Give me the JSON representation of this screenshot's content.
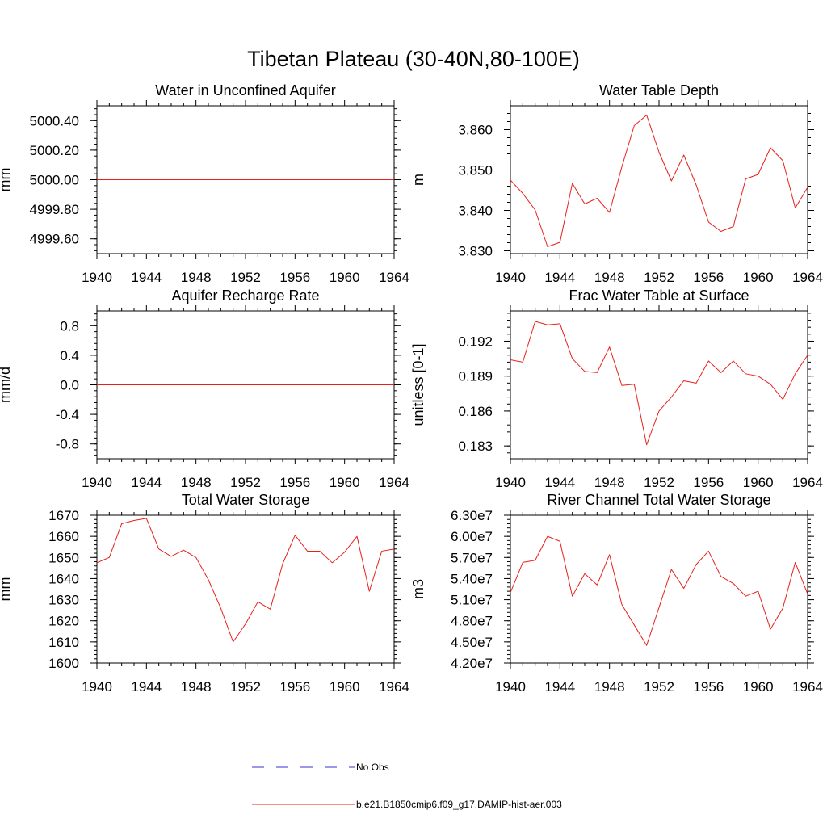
{
  "figure": {
    "title": "Tibetan Plateau (30-40N,80-100E)"
  },
  "legend": {
    "items": [
      {
        "label": "No Obs",
        "color": "#3333cc",
        "dashed": true
      },
      {
        "label": "b.e21.B1850cmip6.f09_g17.DAMIP-hist-aer.003",
        "color": "#e8201a",
        "dashed": false
      }
    ]
  },
  "chart_data": [
    {
      "type": "line",
      "title": "Water in Unconfined Aquifer",
      "ylabel": "mm",
      "xlabel": "",
      "xlim": [
        1940,
        1964
      ],
      "ylim": [
        4999.5,
        5000.5
      ],
      "xticks": [
        1940,
        1944,
        1948,
        1952,
        1956,
        1960,
        1964
      ],
      "xtick_labels": [
        "1940",
        "1944",
        "1948",
        "1952",
        "1956",
        "1960",
        "1964"
      ],
      "yticks": [
        4999.6,
        4999.8,
        5000.0,
        5000.2,
        5000.4
      ],
      "ytick_labels": [
        "4999.60",
        "4999.80",
        "5000.00",
        "5000.20",
        "5000.40"
      ],
      "yminor": 0.04,
      "series": [
        {
          "name": "b.e21.B1850cmip6.f09_g17.DAMIP-hist-aer.003",
          "color": "#e8201a",
          "x": [
            1940,
            1941,
            1942,
            1943,
            1944,
            1945,
            1946,
            1947,
            1948,
            1949,
            1950,
            1951,
            1952,
            1953,
            1954,
            1955,
            1956,
            1957,
            1958,
            1959,
            1960,
            1961,
            1962,
            1963,
            1964
          ],
          "y": [
            5000.0,
            5000.0,
            5000.0,
            5000.0,
            5000.0,
            5000.0,
            5000.0,
            5000.0,
            5000.0,
            5000.0,
            5000.0,
            5000.0,
            5000.0,
            5000.0,
            5000.0,
            5000.0,
            5000.0,
            5000.0,
            5000.0,
            5000.0,
            5000.0,
            5000.0,
            5000.0,
            5000.0,
            5000.0
          ]
        }
      ]
    },
    {
      "type": "line",
      "title": "Water Table Depth",
      "ylabel": "m",
      "xlabel": "",
      "xlim": [
        1940,
        1964
      ],
      "ylim": [
        3.8293,
        3.8659
      ],
      "xticks": [
        1940,
        1944,
        1948,
        1952,
        1956,
        1960,
        1964
      ],
      "xtick_labels": [
        "1940",
        "1944",
        "1948",
        "1952",
        "1956",
        "1960",
        "1964"
      ],
      "yticks": [
        3.83,
        3.84,
        3.85,
        3.86
      ],
      "ytick_labels": [
        "3.830",
        "3.840",
        "3.850",
        "3.860"
      ],
      "yminor": 0.002,
      "series": [
        {
          "name": "b.e21.B1850cmip6.f09_g17.DAMIP-hist-aer.003",
          "color": "#e8201a",
          "x": [
            1940,
            1941,
            1942,
            1943,
            1944,
            1945,
            1946,
            1947,
            1948,
            1949,
            1950,
            1951,
            1952,
            1953,
            1954,
            1955,
            1956,
            1957,
            1958,
            1959,
            1960,
            1961,
            1962,
            1963,
            1964
          ],
          "y": [
            3.8475,
            3.8442,
            3.8401,
            3.831,
            3.8321,
            3.8467,
            3.8416,
            3.843,
            3.8395,
            3.8508,
            3.861,
            3.8636,
            3.8544,
            3.8473,
            3.8537,
            3.8463,
            3.8371,
            3.8348,
            3.836,
            3.8478,
            3.8489,
            3.8555,
            3.8523,
            3.8406,
            3.8457
          ]
        }
      ]
    },
    {
      "type": "line",
      "title": "Aquifer Recharge Rate",
      "ylabel": "mm/d",
      "xlabel": "",
      "xlim": [
        1940,
        1964
      ],
      "ylim": [
        -1.0,
        1.0
      ],
      "xticks": [
        1940,
        1944,
        1948,
        1952,
        1956,
        1960,
        1964
      ],
      "xtick_labels": [
        "1940",
        "1944",
        "1948",
        "1952",
        "1956",
        "1960",
        "1964"
      ],
      "yticks": [
        -0.8,
        -0.4,
        0.0,
        0.4,
        0.8
      ],
      "ytick_labels": [
        "-0.8",
        "-0.4",
        "0.0",
        "0.4",
        "0.8"
      ],
      "yminor": 0.08,
      "series": [
        {
          "name": "b.e21.B1850cmip6.f09_g17.DAMIP-hist-aer.003",
          "color": "#e8201a",
          "x": [
            1940,
            1941,
            1942,
            1943,
            1944,
            1945,
            1946,
            1947,
            1948,
            1949,
            1950,
            1951,
            1952,
            1953,
            1954,
            1955,
            1956,
            1957,
            1958,
            1959,
            1960,
            1961,
            1962,
            1963,
            1964
          ],
          "y": [
            0,
            0,
            0,
            0,
            0,
            0,
            0,
            0,
            0,
            0,
            0,
            0,
            0,
            0,
            0,
            0,
            0,
            0,
            0,
            0,
            0,
            0,
            0,
            0,
            0
          ]
        }
      ]
    },
    {
      "type": "line",
      "title": "Frac Water Table at Surface",
      "ylabel": "unitless [0-1]",
      "xlabel": "",
      "xlim": [
        1940,
        1964
      ],
      "ylim": [
        0.1819,
        0.1946
      ],
      "xticks": [
        1940,
        1944,
        1948,
        1952,
        1956,
        1960,
        1964
      ],
      "xtick_labels": [
        "1940",
        "1944",
        "1948",
        "1952",
        "1956",
        "1960",
        "1964"
      ],
      "yticks": [
        0.183,
        0.186,
        0.189,
        0.192
      ],
      "ytick_labels": [
        "0.183",
        "0.186",
        "0.189",
        "0.192"
      ],
      "yminor": 0.0006,
      "series": [
        {
          "name": "b.e21.B1850cmip6.f09_g17.DAMIP-hist-aer.003",
          "color": "#e8201a",
          "x": [
            1940,
            1941,
            1942,
            1943,
            1944,
            1945,
            1946,
            1947,
            1948,
            1949,
            1950,
            1951,
            1952,
            1953,
            1954,
            1955,
            1956,
            1957,
            1958,
            1959,
            1960,
            1961,
            1962,
            1963,
            1964
          ],
          "y": [
            0.1904,
            0.1902,
            0.1937,
            0.1934,
            0.1935,
            0.1905,
            0.1894,
            0.1893,
            0.1915,
            0.1882,
            0.1883,
            0.1831,
            0.186,
            0.1872,
            0.1886,
            0.1884,
            0.1903,
            0.1893,
            0.1903,
            0.1892,
            0.189,
            0.1883,
            0.187,
            0.1892,
            0.1908
          ]
        }
      ]
    },
    {
      "type": "line",
      "title": "Total Water Storage",
      "ylabel": "mm",
      "xlabel": "",
      "xlim": [
        1940,
        1964
      ],
      "ylim": [
        1600,
        1670
      ],
      "xticks": [
        1940,
        1944,
        1948,
        1952,
        1956,
        1960,
        1964
      ],
      "xtick_labels": [
        "1940",
        "1944",
        "1948",
        "1952",
        "1956",
        "1960",
        "1964"
      ],
      "yticks": [
        1600,
        1610,
        1620,
        1630,
        1640,
        1650,
        1660,
        1670
      ],
      "ytick_labels": [
        "1600",
        "1610",
        "1620",
        "1630",
        "1640",
        "1650",
        "1660",
        "1670"
      ],
      "yminor": 2,
      "series": [
        {
          "name": "b.e21.B1850cmip6.f09_g17.DAMIP-hist-aer.003",
          "color": "#e8201a",
          "x": [
            1940,
            1941,
            1942,
            1943,
            1944,
            1945,
            1946,
            1947,
            1948,
            1949,
            1950,
            1951,
            1952,
            1953,
            1954,
            1955,
            1956,
            1957,
            1958,
            1959,
            1960,
            1961,
            1962,
            1963,
            1964
          ],
          "y": [
            1647.5,
            1650.0,
            1666.0,
            1667.5,
            1668.5,
            1654.0,
            1650.5,
            1653.5,
            1650.0,
            1639.5,
            1626.0,
            1610.0,
            1618.5,
            1629.0,
            1625.5,
            1647.0,
            1660.5,
            1653.0,
            1653.0,
            1647.5,
            1652.5,
            1660.0,
            1634.0,
            1653.0,
            1654.0
          ]
        }
      ]
    },
    {
      "type": "line",
      "title": "River Channel Total Water Storage",
      "ylabel": "m3",
      "xlabel": "",
      "xlim": [
        1940,
        1964
      ],
      "ylim": [
        42000000,
        63000000
      ],
      "xticks": [
        1940,
        1944,
        1948,
        1952,
        1956,
        1960,
        1964
      ],
      "xtick_labels": [
        "1940",
        "1944",
        "1948",
        "1952",
        "1956",
        "1960",
        "1964"
      ],
      "yticks": [
        42000000,
        45000000,
        48000000,
        51000000,
        54000000,
        57000000,
        60000000,
        63000000
      ],
      "ytick_labels": [
        "4.20e7",
        "4.50e7",
        "4.80e7",
        "5.10e7",
        "5.40e7",
        "5.70e7",
        "6.00e7",
        "6.30e7"
      ],
      "yminor": 600000,
      "series": [
        {
          "name": "b.e21.B1850cmip6.f09_g17.DAMIP-hist-aer.003",
          "color": "#e8201a",
          "x": [
            1940,
            1941,
            1942,
            1943,
            1944,
            1945,
            1946,
            1947,
            1948,
            1949,
            1950,
            1951,
            1952,
            1953,
            1954,
            1955,
            1956,
            1957,
            1958,
            1959,
            1960,
            1961,
            1962,
            1963,
            1964
          ],
          "y": [
            52000000,
            56300000,
            56600000,
            60000000,
            59300000,
            51500000,
            54700000,
            53100000,
            57400000,
            50300000,
            47400000,
            44500000,
            49900000,
            55300000,
            52600000,
            56000000,
            57900000,
            54300000,
            53300000,
            51500000,
            52200000,
            46800000,
            49800000,
            56300000,
            51800000
          ]
        }
      ]
    }
  ]
}
